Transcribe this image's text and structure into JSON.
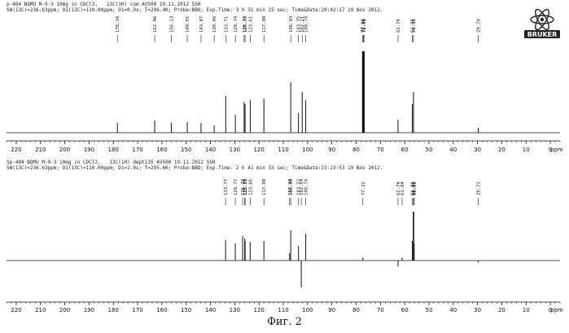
{
  "chart_data": [
    {
      "type": "line",
      "header_lines": [
        "p-404 BQMU M-9-3 10mg in CDCl3,   13C(1H) com AV500 19.11.2012 SSH",
        "SW(13C)=236.63ppm; O1(13C)=110.00ppm; D1=0.9s; T=296.4K; Probe:BBO; Exp.Time: 3 h 31 min 25 sec; Time&Date:20:42:17 19 Nov 2012."
      ],
      "xlabel": "ppm",
      "xlim": [
        224,
        -4
      ],
      "x_ticks": [
        220,
        210,
        200,
        190,
        180,
        170,
        160,
        150,
        140,
        130,
        120,
        110,
        100,
        90,
        80,
        70,
        60,
        50,
        40,
        30,
        20,
        10,
        0
      ],
      "peak_labels": [
        "178.34",
        "162.96",
        "156.13",
        "149.55",
        "143.87",
        "138.46",
        "133.71",
        "129.74",
        "126.14",
        "125.72",
        "123.61",
        "117.98",
        "106.93",
        "103.75",
        "102.21",
        "100.74",
        "77.26",
        "77.00",
        "76.76",
        "62.74",
        "56.85",
        "56.36",
        "29.70"
      ],
      "peaks": [
        {
          "x": 178.34,
          "y": 0.12
        },
        {
          "x": 162.96,
          "y": 0.15
        },
        {
          "x": 156.13,
          "y": 0.12
        },
        {
          "x": 149.55,
          "y": 0.13
        },
        {
          "x": 143.87,
          "y": 0.12
        },
        {
          "x": 138.46,
          "y": 0.09
        },
        {
          "x": 133.71,
          "y": 0.45
        },
        {
          "x": 129.74,
          "y": 0.22
        },
        {
          "x": 126.14,
          "y": 0.38
        },
        {
          "x": 125.72,
          "y": 0.35
        },
        {
          "x": 123.61,
          "y": 0.4
        },
        {
          "x": 117.98,
          "y": 0.42
        },
        {
          "x": 106.93,
          "y": 0.62
        },
        {
          "x": 103.75,
          "y": 0.24
        },
        {
          "x": 102.21,
          "y": 0.5
        },
        {
          "x": 100.74,
          "y": 0.4
        },
        {
          "x": 77.26,
          "y": 1.0
        },
        {
          "x": 77.0,
          "y": 1.0
        },
        {
          "x": 76.76,
          "y": 1.0
        },
        {
          "x": 62.74,
          "y": 0.16
        },
        {
          "x": 56.85,
          "y": 0.35
        },
        {
          "x": 56.36,
          "y": 0.5
        },
        {
          "x": 29.7,
          "y": 0.06
        }
      ]
    },
    {
      "type": "line",
      "header_lines": [
        "Sp-404 BQMU M-9-3 10mg in CDCl3,   13C(1H) dept135 AV500 19.11.2012 SSH",
        "SW(13C)=236.63ppm; O1(13C)=110.00ppm; D1=2.0s; T=295.6K; Probe:BBO; Exp.Time: 2 h 41 min 33 sec; Time&Date:23:23:53 19 Nov 2012."
      ],
      "xlabel": "ppm",
      "xlim": [
        224,
        -4
      ],
      "x_ticks": [
        220,
        210,
        200,
        190,
        180,
        170,
        160,
        150,
        140,
        130,
        120,
        110,
        100,
        90,
        80,
        70,
        60,
        50,
        40,
        30,
        20,
        10,
        0
      ],
      "peak_labels": [
        "133.77",
        "129.77",
        "126.74",
        "125.89",
        "125.71",
        "123.65",
        "117.98",
        "107.40",
        "106.93",
        "103.72",
        "102.59",
        "100.74",
        "77.22",
        "62.74",
        "61.04",
        "56.84",
        "56.35",
        "56.09",
        "29.71"
      ],
      "peaks": [
        {
          "x": 133.77,
          "y": 0.42
        },
        {
          "x": 129.77,
          "y": 0.35
        },
        {
          "x": 126.74,
          "y": 0.5
        },
        {
          "x": 125.89,
          "y": 0.45
        },
        {
          "x": 125.71,
          "y": 0.4
        },
        {
          "x": 123.65,
          "y": 0.38
        },
        {
          "x": 117.98,
          "y": 0.4
        },
        {
          "x": 107.4,
          "y": 0.15
        },
        {
          "x": 106.93,
          "y": 0.62
        },
        {
          "x": 103.72,
          "y": 0.3
        },
        {
          "x": 102.59,
          "y": -0.55
        },
        {
          "x": 100.74,
          "y": 0.55
        },
        {
          "x": 77.22,
          "y": 0.06
        },
        {
          "x": 62.74,
          "y": -0.12
        },
        {
          "x": 61.04,
          "y": 0.06
        },
        {
          "x": 56.84,
          "y": 0.4
        },
        {
          "x": 56.35,
          "y": 1.0
        },
        {
          "x": 56.09,
          "y": 0.35
        },
        {
          "x": 29.71,
          "y": -0.04
        }
      ]
    }
  ],
  "logo_text": "BRUKER",
  "caption": "Фиг. 2"
}
